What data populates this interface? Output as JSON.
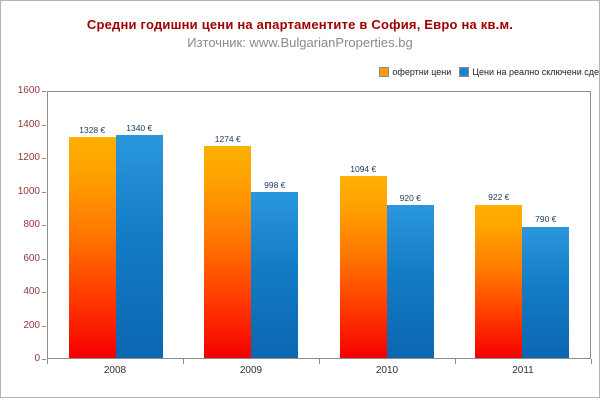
{
  "chart_data": {
    "type": "bar",
    "title": "Средни годишни цени на апартаментите в София, Евро на кв.м.",
    "subtitle": "Източник: www.BulgarianProperties.bg",
    "categories": [
      "2008",
      "2009",
      "2010",
      "2011"
    ],
    "series": [
      {
        "name": "офертни цени",
        "color": "#ff9900",
        "values": [
          1328,
          1274,
          1094,
          922
        ],
        "labels": [
          "1328 €",
          "1274 €",
          "1094 €",
          "922 €"
        ]
      },
      {
        "name": "Цени на реално сключени сде",
        "color": "#1b84cf",
        "values": [
          1340,
          998,
          920,
          790
        ],
        "labels": [
          "1340 €",
          "998 €",
          "920 €",
          "790 €"
        ]
      }
    ],
    "ylim": [
      0,
      1600
    ],
    "yticks": [
      0,
      200,
      400,
      600,
      800,
      1000,
      1200,
      1400,
      1600
    ],
    "legend_position": "top-right",
    "grid": false
  }
}
